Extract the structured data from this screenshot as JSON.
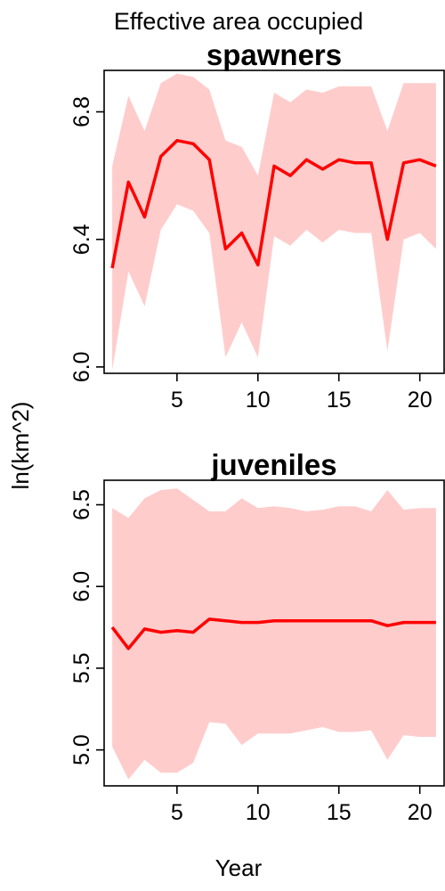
{
  "page_title": "Effective area occupied",
  "ylabel": "ln(km^2)",
  "xlabel": "Year",
  "colors": {
    "line": "#ff0000",
    "band": "#ffcccc",
    "frame": "#000000"
  },
  "chart_data": [
    {
      "type": "area",
      "title": "spawners",
      "xlim": [
        0.5,
        21.5
      ],
      "ylim": [
        5.98,
        6.93
      ],
      "xticks": [
        5,
        10,
        15,
        20
      ],
      "yticks": [
        6.0,
        6.4,
        6.8
      ],
      "ytick_labels": [
        "6.0",
        "6.4",
        "6.8"
      ],
      "x": [
        1,
        2,
        3,
        4,
        5,
        6,
        7,
        8,
        9,
        10,
        11,
        12,
        13,
        14,
        15,
        16,
        17,
        18,
        19,
        20,
        21
      ],
      "series": [
        {
          "role": "estimate",
          "values": [
            6.31,
            6.58,
            6.47,
            6.66,
            6.71,
            6.7,
            6.65,
            6.37,
            6.42,
            6.32,
            6.63,
            6.6,
            6.65,
            6.62,
            6.65,
            6.64,
            6.64,
            6.4,
            6.64,
            6.65,
            6.63
          ]
        },
        {
          "role": "upper",
          "values": [
            6.63,
            6.85,
            6.74,
            6.89,
            6.92,
            6.91,
            6.87,
            6.71,
            6.69,
            6.6,
            6.86,
            6.83,
            6.87,
            6.86,
            6.88,
            6.88,
            6.88,
            6.74,
            6.89,
            6.89,
            6.89
          ]
        },
        {
          "role": "lower",
          "values": [
            5.99,
            6.3,
            6.19,
            6.43,
            6.51,
            6.49,
            6.42,
            6.03,
            6.14,
            6.03,
            6.41,
            6.38,
            6.43,
            6.39,
            6.43,
            6.42,
            6.42,
            6.05,
            6.4,
            6.42,
            6.37
          ]
        }
      ]
    },
    {
      "type": "area",
      "title": "juveniles",
      "xlim": [
        0.5,
        21.5
      ],
      "ylim": [
        4.78,
        6.65
      ],
      "xticks": [
        5,
        10,
        15,
        20
      ],
      "yticks": [
        5.0,
        5.5,
        6.0,
        6.5
      ],
      "ytick_labels": [
        "5.0",
        "5.5",
        "6.0",
        "6.5"
      ],
      "x": [
        1,
        2,
        3,
        4,
        5,
        6,
        7,
        8,
        9,
        10,
        11,
        12,
        13,
        14,
        15,
        16,
        17,
        18,
        19,
        20,
        21
      ],
      "series": [
        {
          "role": "estimate",
          "values": [
            5.75,
            5.62,
            5.74,
            5.72,
            5.73,
            5.72,
            5.8,
            5.79,
            5.78,
            5.78,
            5.79,
            5.79,
            5.79,
            5.79,
            5.79,
            5.79,
            5.79,
            5.76,
            5.78,
            5.78,
            5.78
          ]
        },
        {
          "role": "upper",
          "values": [
            6.48,
            6.42,
            6.54,
            6.59,
            6.6,
            6.53,
            6.46,
            6.46,
            6.54,
            6.48,
            6.49,
            6.48,
            6.46,
            6.47,
            6.49,
            6.49,
            6.46,
            6.59,
            6.47,
            6.48,
            6.48
          ]
        },
        {
          "role": "lower",
          "values": [
            5.02,
            4.82,
            4.94,
            4.86,
            4.86,
            4.92,
            5.17,
            5.16,
            5.03,
            5.1,
            5.1,
            5.1,
            5.12,
            5.14,
            5.11,
            5.11,
            5.12,
            4.94,
            5.09,
            5.08,
            5.08
          ]
        }
      ]
    }
  ]
}
